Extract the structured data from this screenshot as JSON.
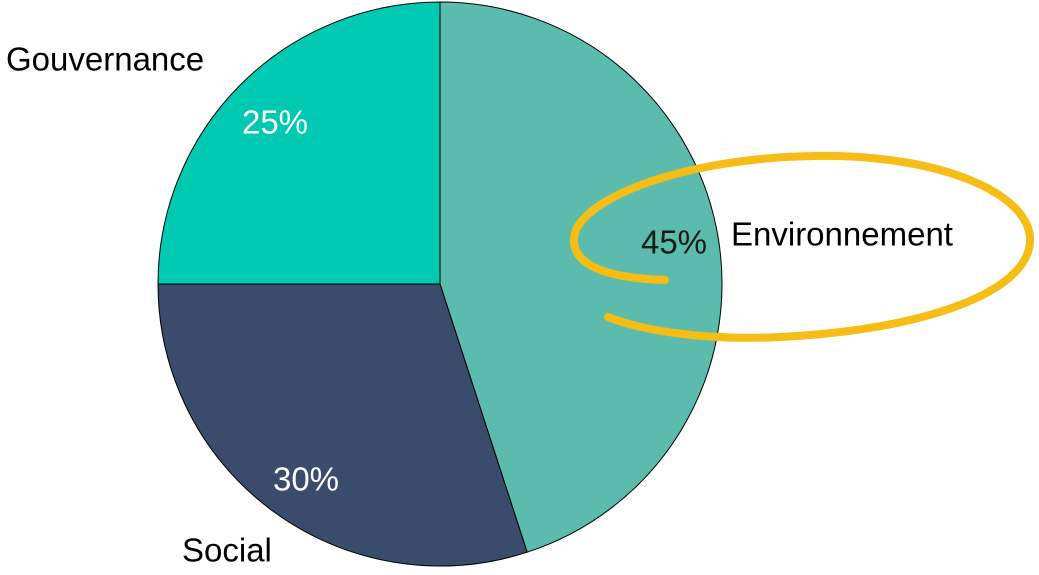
{
  "chart_data": {
    "type": "pie",
    "slices": [
      {
        "label": "Environnement",
        "value": 45,
        "value_label": "45%",
        "color": "#5bbcad",
        "value_label_color": "#1a1a1a"
      },
      {
        "label": "Social",
        "value": 30,
        "value_label": "30%",
        "color": "#3a4c6b",
        "value_label_color": "#ffffff"
      },
      {
        "label": "Gouvernance",
        "value": 25,
        "value_label": "25%",
        "color": "#00c9b1",
        "value_label_color": "#ffffff"
      }
    ],
    "start_direction": "12 o'clock",
    "order": "clockwise",
    "slice_border_color": "#000000",
    "highlight": {
      "target": "Environnement",
      "shape": "hand-drawn ellipse",
      "color": "#f6bd16"
    }
  }
}
